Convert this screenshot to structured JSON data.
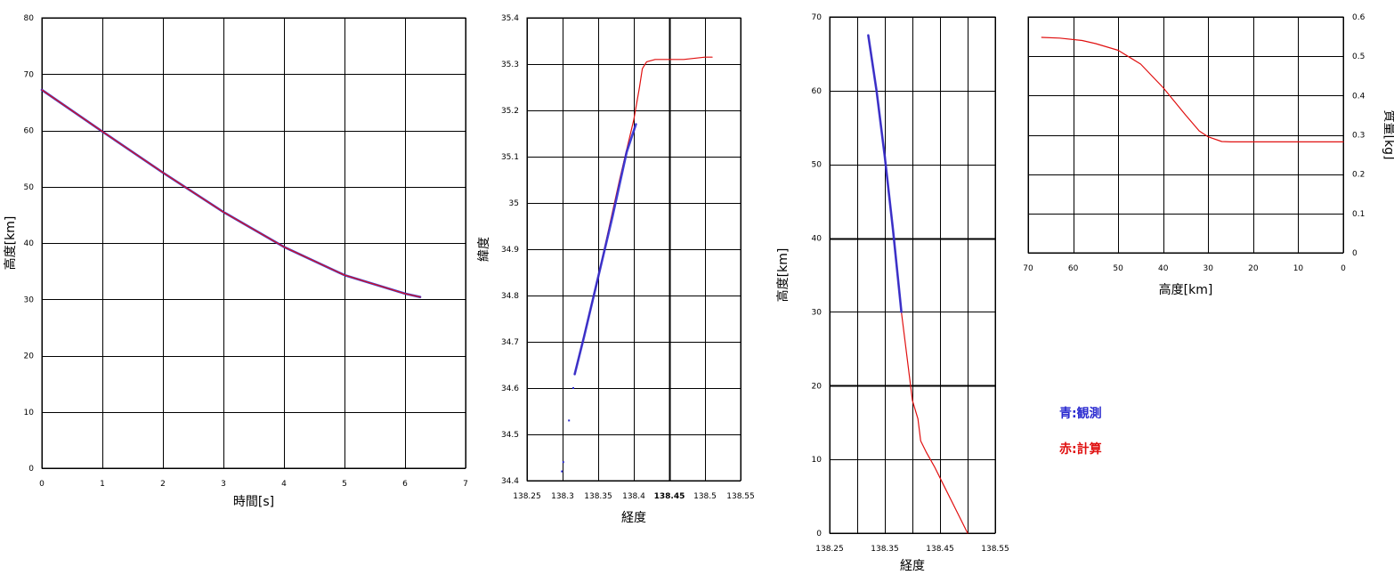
{
  "colors": {
    "observed": "#2b2bd0",
    "computed": "#e01010",
    "grid": "#000000"
  },
  "legend": {
    "observed": "青:観測",
    "computed": "赤:計算"
  },
  "chart_data": [
    {
      "type": "line",
      "xlabel": "時間[s]",
      "ylabel": "高度[km]",
      "xlim": [
        0,
        7
      ],
      "ylim": [
        0,
        80
      ],
      "xticks": [
        0,
        1,
        2,
        3,
        4,
        5,
        6,
        7
      ],
      "yticks": [
        0,
        10,
        20,
        30,
        40,
        50,
        60,
        70,
        80
      ],
      "grid": true,
      "series": [
        {
          "role": "observed",
          "x": [
            0,
            1,
            2,
            3,
            4,
            5,
            6,
            6.25
          ],
          "y": [
            67.2,
            59.8,
            52.5,
            45.5,
            39.3,
            34.3,
            31.0,
            30.4
          ]
        },
        {
          "role": "computed",
          "x": [
            0,
            1,
            2,
            3,
            4,
            5,
            6,
            6.25
          ],
          "y": [
            67.2,
            59.8,
            52.5,
            45.5,
            39.3,
            34.3,
            31.0,
            30.4
          ]
        }
      ]
    },
    {
      "type": "line",
      "xlabel": "経度",
      "ylabel": "緯度",
      "xlim": [
        138.25,
        138.55
      ],
      "ylim": [
        34.4,
        35.4
      ],
      "xticks": [
        138.25,
        138.3,
        138.35,
        138.4,
        138.45,
        138.5,
        138.55
      ],
      "xtick_labels": [
        "138.25",
        "138.3",
        "138.35",
        "138.4",
        "138.45",
        "138.5",
        "138.55"
      ],
      "yticks": [
        34.4,
        34.5,
        34.6,
        34.7,
        34.8,
        34.9,
        35,
        35.1,
        35.2,
        35.3,
        35.4
      ],
      "ytick_labels": [
        "34.4",
        "34.5",
        "34.6",
        "34.7",
        "34.8",
        "34.9",
        "35",
        "35.1",
        "35.2",
        "35.3",
        "35.4"
      ],
      "emphasized_x_gridline": 138.45,
      "grid": true,
      "series": [
        {
          "role": "computed",
          "x": [
            138.317,
            138.35,
            138.38,
            138.4,
            138.408,
            138.412,
            138.418,
            138.43,
            138.47,
            138.5,
            138.51
          ],
          "y": [
            34.63,
            34.84,
            35.05,
            35.18,
            35.25,
            35.29,
            35.305,
            35.31,
            35.31,
            35.315,
            35.315
          ]
        },
        {
          "role": "observed",
          "x": [
            138.317,
            138.33,
            138.35,
            138.37,
            138.39,
            138.403
          ],
          "y": [
            34.63,
            34.71,
            34.84,
            34.97,
            35.11,
            35.17
          ]
        },
        {
          "role": "observed_points",
          "x": [
            138.299,
            138.301,
            138.309,
            138.315
          ],
          "y": [
            34.42,
            34.44,
            34.53,
            34.6
          ]
        }
      ]
    },
    {
      "type": "line",
      "xlabel": "経度",
      "ylabel": "高度[km]",
      "xlim": [
        138.25,
        138.55
      ],
      "ylim": [
        0,
        70
      ],
      "xticks": [
        138.25,
        138.3,
        138.35,
        138.4,
        138.45,
        138.5,
        138.55
      ],
      "xtick_labels": [
        "138.25",
        "",
        "138.35",
        "",
        "138.45",
        "",
        "138.55"
      ],
      "yticks": [
        0,
        10,
        20,
        30,
        40,
        50,
        60,
        70
      ],
      "emphasized_y_gridlines": [
        20,
        40
      ],
      "grid": true,
      "series": [
        {
          "role": "computed",
          "x": [
            138.32,
            138.335,
            138.35,
            138.365,
            138.38,
            138.39,
            138.4,
            138.41,
            138.415,
            138.425,
            138.44,
            138.46,
            138.48,
            138.5
          ],
          "y": [
            67.5,
            60,
            51,
            41,
            30,
            24,
            18,
            15.5,
            12.5,
            11,
            9,
            6,
            3,
            0
          ]
        },
        {
          "role": "observed",
          "x": [
            138.32,
            138.335,
            138.35,
            138.365,
            138.38
          ],
          "y": [
            67.5,
            60,
            51,
            41,
            30
          ]
        }
      ]
    },
    {
      "type": "line",
      "xlabel": "高度[km]",
      "ylabel": "質量[kg]",
      "xlim": [
        70,
        0
      ],
      "ylim": [
        0,
        0.6
      ],
      "xticks": [
        70,
        60,
        50,
        40,
        30,
        20,
        10,
        0
      ],
      "yticks": [
        0,
        0.1,
        0.2,
        0.3,
        0.4,
        0.5,
        0.6
      ],
      "ytick_labels": [
        "0",
        "0.1",
        "0.2",
        "0.3",
        "0.4",
        "0.5",
        "0.6"
      ],
      "yaxis_position": "right",
      "grid": true,
      "series": [
        {
          "role": "computed",
          "x": [
            67,
            63,
            58,
            55,
            50,
            45,
            40,
            35,
            32,
            30,
            27,
            25,
            20,
            10,
            0
          ],
          "y": [
            0.548,
            0.546,
            0.54,
            0.532,
            0.515,
            0.48,
            0.42,
            0.35,
            0.31,
            0.295,
            0.283,
            0.282,
            0.282,
            0.282,
            0.282
          ]
        }
      ]
    }
  ]
}
